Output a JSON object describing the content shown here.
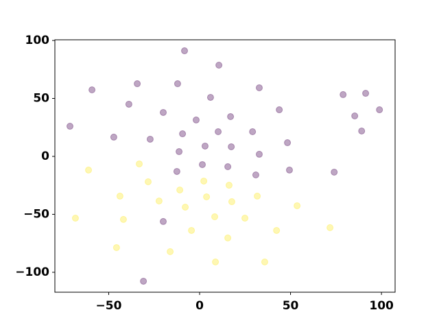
{
  "chart_data": {
    "type": "scatter",
    "series": [
      {
        "color": "#440154",
        "x": [
          -8.3,
          10.6,
          -59.2,
          -34.3,
          -12.1,
          32.8,
          -38.9,
          6,
          78.9,
          91.3,
          98.9,
          -20,
          -1.9,
          43.8,
          85.3,
          -71.3,
          17,
          -9.4,
          10.2,
          29.1,
          89.1,
          -47.2,
          -27.2,
          48.3,
          3,
          17.4,
          -11.3,
          32.8,
          1.5,
          15.5,
          -12.5,
          49.4,
          74,
          30.9,
          -20,
          -30.9
        ],
        "values": [
          91.1,
          78.7,
          57.4,
          62.7,
          62.7,
          59.2,
          45,
          50.9,
          53.3,
          54.4,
          40.2,
          37.9,
          31.4,
          40.2,
          34.9,
          26,
          34.3,
          19.5,
          21.3,
          21.3,
          21.9,
          16.6,
          14.8,
          11.8,
          8.9,
          8.3,
          4.1,
          1.8,
          -7.1,
          -8.9,
          -13,
          -11.8,
          -13.6,
          -16,
          -56.2,
          -107.7
        ]
      },
      {
        "color": "#fde725",
        "x": [
          -61.1,
          -33.2,
          -28.3,
          2.3,
          -10.9,
          16.2,
          -43.8,
          -22.3,
          3.8,
          31.7,
          17.7,
          -68.3,
          -41.9,
          -7.9,
          53.6,
          8.3,
          24.9,
          -4.5,
          42.3,
          71.7,
          15.5,
          -45.7,
          -16.2,
          8.7,
          35.8
        ],
        "values": [
          -11.8,
          -6.5,
          -21.9,
          -21.3,
          -29,
          -24.9,
          -34.3,
          -38.5,
          -34.9,
          -34.3,
          -39.1,
          -53.3,
          -54.4,
          -43.8,
          -42.6,
          -52.1,
          -53.3,
          -63.9,
          -63.9,
          -61.5,
          -70.4,
          -78.7,
          -82.2,
          -91.1,
          -91.1
        ]
      }
    ],
    "xlim": [
      -79.6,
      107.5
    ],
    "ylim": [
      -117.2,
      100.6
    ],
    "xticks": [
      {
        "value": -50,
        "label": "−50"
      },
      0,
      50,
      100
    ],
    "yticks": [
      {
        "value": -100,
        "label": "−100"
      },
      {
        "value": -50,
        "label": "−50"
      },
      0,
      50,
      100
    ]
  }
}
